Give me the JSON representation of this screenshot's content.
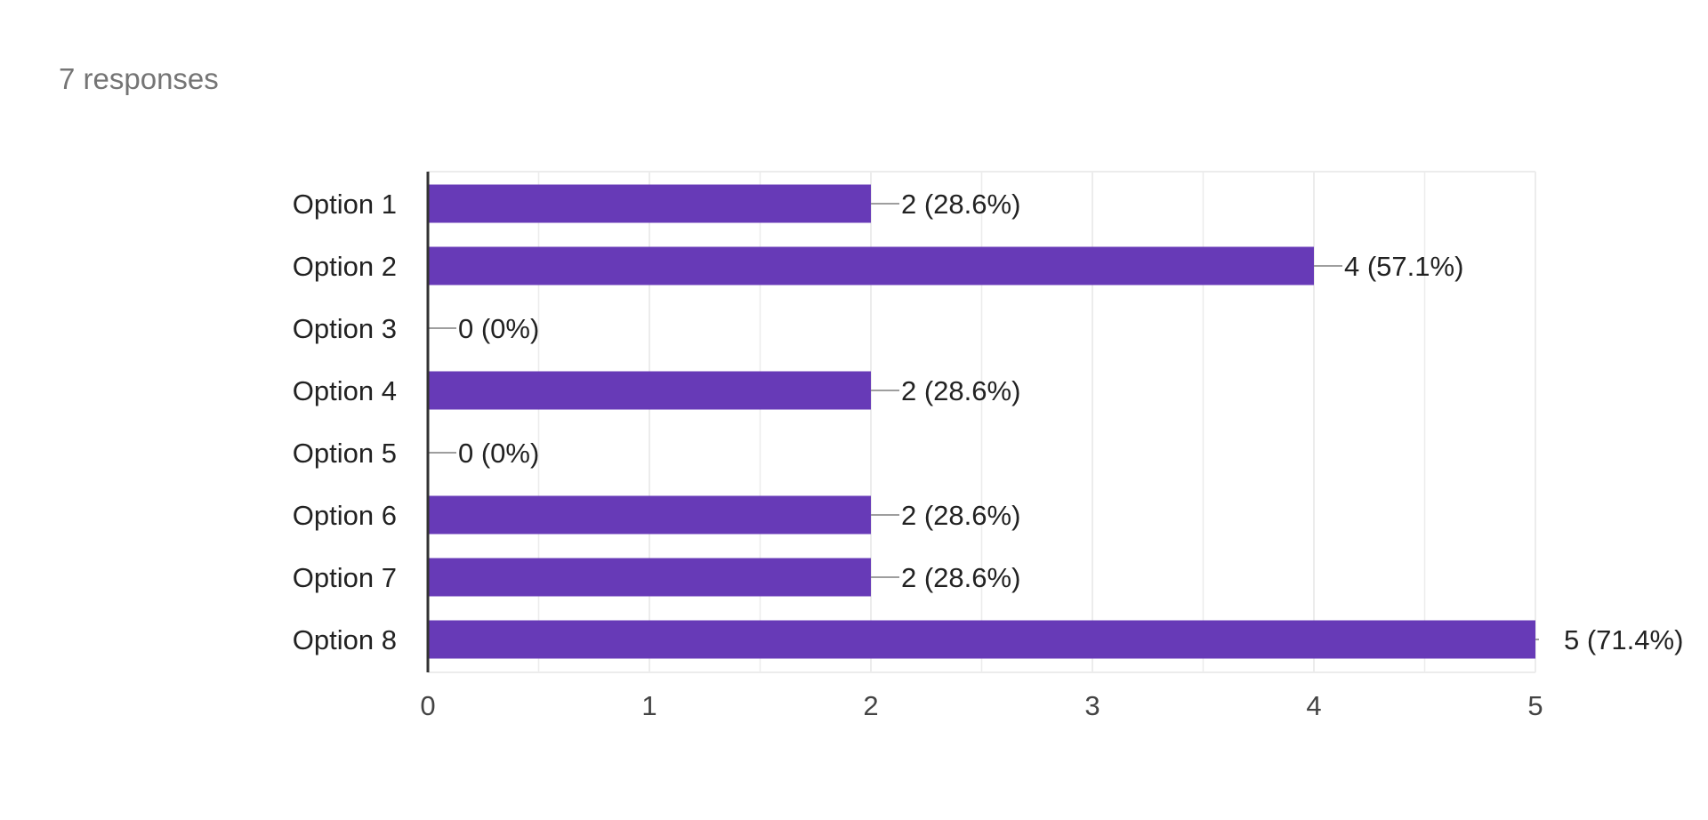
{
  "summary": {
    "responses": "7 responses"
  },
  "chart_data": {
    "type": "bar",
    "orientation": "horizontal",
    "categories": [
      "Option 1",
      "Option 2",
      "Option 3",
      "Option 4",
      "Option 5",
      "Option 6",
      "Option 7",
      "Option 8"
    ],
    "values": [
      2,
      4,
      0,
      2,
      0,
      2,
      2,
      5
    ],
    "data_labels": [
      "2 (28.6%)",
      "4 (57.1%)",
      "0 (0%)",
      "2 (28.6%)",
      "0 (0%)",
      "2 (28.6%)",
      "2 (28.6%)",
      "5 (71.4%)"
    ],
    "xlim": [
      0,
      5
    ],
    "xticks": [
      "0",
      "1",
      "2",
      "3",
      "4",
      "5"
    ],
    "grid": true,
    "bar_color": "#673ab7",
    "grid_color": "#ececec",
    "leader_color": "#9e9e9e"
  }
}
